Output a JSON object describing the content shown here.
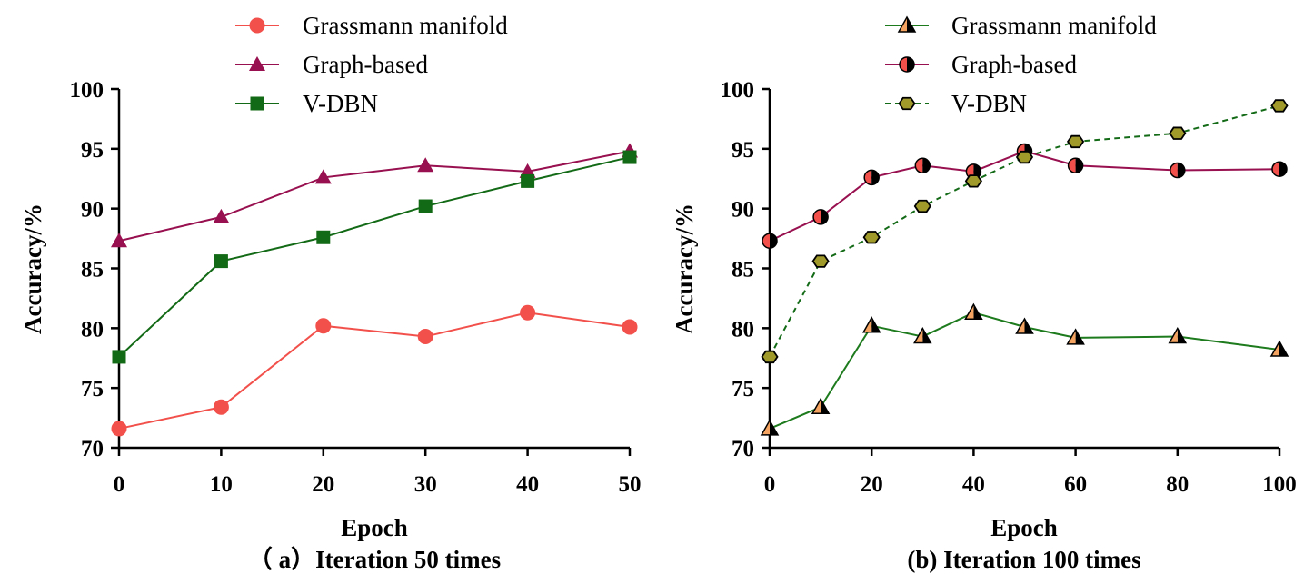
{
  "chart_data": [
    {
      "type": "line",
      "caption": "（ a）Iteration 50 times",
      "xlabel": "Epoch",
      "ylabel": "Accuracy/%",
      "xlim": [
        0,
        50
      ],
      "ylim": [
        70,
        100
      ],
      "xticks": [
        0,
        10,
        20,
        30,
        40,
        50
      ],
      "yticks": [
        70,
        75,
        80,
        85,
        90,
        95,
        100
      ],
      "legend_position": "top",
      "series": [
        {
          "name": "Grassmann manifold",
          "color": "#f2504b",
          "marker": "circle",
          "line": "solid",
          "x": [
            0,
            10,
            20,
            30,
            40,
            50
          ],
          "y": [
            71.6,
            73.4,
            80.2,
            79.3,
            81.3,
            80.1
          ]
        },
        {
          "name": "Graph-based",
          "color": "#98104f",
          "marker": "triangle",
          "line": "solid",
          "x": [
            0,
            10,
            20,
            30,
            40,
            50
          ],
          "y": [
            87.3,
            89.3,
            92.6,
            93.6,
            93.1,
            94.8
          ]
        },
        {
          "name": "V-DBN",
          "color": "#136a16",
          "marker": "square",
          "line": "solid",
          "x": [
            0,
            10,
            20,
            30,
            40,
            50
          ],
          "y": [
            77.6,
            85.6,
            87.6,
            90.2,
            92.3,
            94.3
          ]
        }
      ]
    },
    {
      "type": "line",
      "caption": "(b) Iteration 100 times",
      "xlabel": "Epoch",
      "ylabel": "Accuracy/%",
      "xlim": [
        0,
        100
      ],
      "ylim": [
        70,
        100
      ],
      "xticks": [
        0,
        20,
        40,
        60,
        80,
        100
      ],
      "yticks": [
        70,
        75,
        80,
        85,
        90,
        95,
        100
      ],
      "legend_position": "top",
      "series": [
        {
          "name": "Grassmann manifold",
          "color": "#1d7a1d",
          "marker_color": "#f4a460",
          "marker": "half-triangle",
          "line": "solid",
          "x": [
            0,
            10,
            20,
            30,
            40,
            50,
            60,
            80,
            100
          ],
          "y": [
            71.6,
            73.4,
            80.2,
            79.3,
            81.3,
            80.1,
            79.2,
            79.3,
            78.2
          ]
        },
        {
          "name": "Graph-based",
          "color": "#98104f",
          "marker_color": "#f2504b",
          "marker": "half-circle",
          "line": "solid",
          "x": [
            0,
            10,
            20,
            30,
            40,
            50,
            60,
            80,
            100
          ],
          "y": [
            87.3,
            89.3,
            92.6,
            93.6,
            93.1,
            94.8,
            93.6,
            93.2,
            93.3
          ]
        },
        {
          "name": "V-DBN",
          "color": "#136a16",
          "marker_color": "#a09a2a",
          "marker": "hexagon",
          "line": "dashed",
          "x": [
            0,
            10,
            20,
            30,
            40,
            50,
            60,
            80,
            100
          ],
          "y": [
            77.6,
            85.6,
            87.6,
            90.2,
            92.3,
            94.3,
            95.6,
            96.3,
            98.6
          ]
        }
      ]
    }
  ]
}
